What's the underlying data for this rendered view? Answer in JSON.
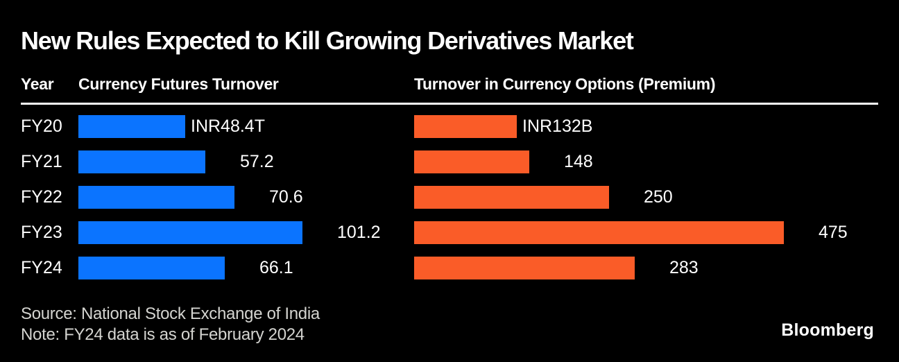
{
  "title": "New Rules Expected to Kill Growing Derivatives Market",
  "table": {
    "year_header": "Year"
  },
  "chart_data": {
    "type": "bar",
    "orientation": "horizontal",
    "categories": [
      "FY20",
      "FY21",
      "FY22",
      "FY23",
      "FY24"
    ],
    "series": [
      {
        "name": "Currency Futures Turnover",
        "values": [
          48.4,
          57.2,
          70.6,
          101.2,
          66.1
        ],
        "value_labels": [
          "INR48.4T",
          "57.2",
          "70.6",
          "101.2",
          "66.1"
        ],
        "color": "#0b74ff",
        "xlim": [
          0,
          101.2
        ]
      },
      {
        "name": "Turnover in Currency Options (Premium)",
        "values": [
          132,
          148,
          250,
          475,
          283
        ],
        "value_labels": [
          "INR132B",
          "148",
          "250",
          "475",
          "283"
        ],
        "color": "#fa5c28",
        "xlim": [
          0,
          475
        ]
      }
    ],
    "grid": false,
    "legend_position": "none",
    "value_labels_position": "right-of-bar"
  },
  "footer": {
    "source": "Source: National Stock Exchange of India",
    "note": "Note: FY24 data is as of February 2024",
    "brand": "Bloomberg"
  },
  "colors": {
    "background": "#000000",
    "futures_bar": "#0b74ff",
    "options_bar": "#fa5c28",
    "text_primary": "#ffffff",
    "text_secondary": "#d4d4d0",
    "rule": "#ffffff"
  }
}
